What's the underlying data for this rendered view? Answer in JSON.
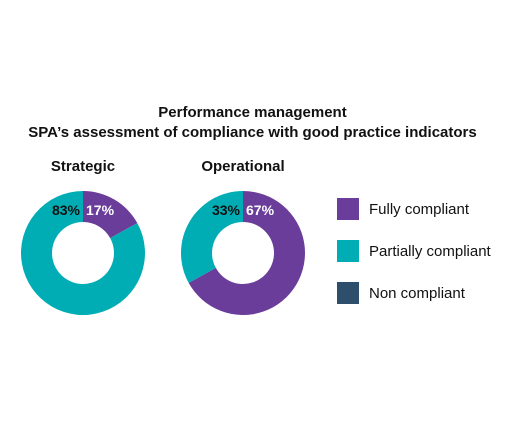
{
  "title_line1": "Performance management",
  "title_line2": "SPA’s assessment of compliance with good practice indicators",
  "legend_entries": [
    {
      "label": "Fully compliant",
      "color": "#6a3d9a"
    },
    {
      "label": "Partially compliant",
      "color": "#00adb5"
    },
    {
      "label": "Non compliant",
      "color": "#2d4f6b"
    }
  ],
  "chart_data": [
    {
      "type": "pie",
      "title": "Strategic",
      "slices": [
        {
          "category": "Fully compliant",
          "value": 17,
          "label": "17%",
          "color": "#6a3d9a"
        },
        {
          "category": "Partially compliant",
          "value": 83,
          "label": "83%",
          "color": "#00adb5"
        }
      ]
    },
    {
      "type": "pie",
      "title": "Operational",
      "slices": [
        {
          "category": "Fully compliant",
          "value": 67,
          "label": "67%",
          "color": "#6a3d9a"
        },
        {
          "category": "Partially compliant",
          "value": 33,
          "label": "33%",
          "color": "#00adb5"
        }
      ]
    }
  ]
}
